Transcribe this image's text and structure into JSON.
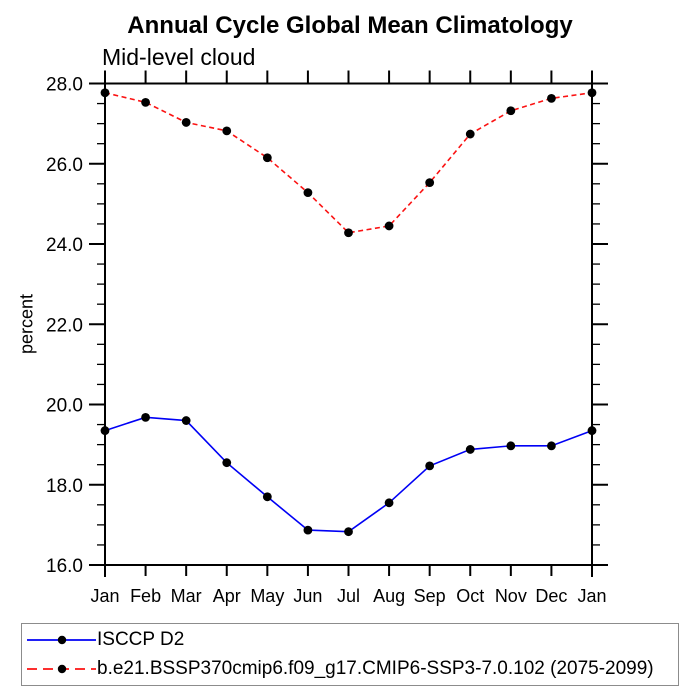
{
  "chart_data": {
    "type": "line",
    "title": "Annual Cycle Global Mean Climatology",
    "subtitle": "Mid-level cloud",
    "ylabel": "percent",
    "categories": [
      "Jan",
      "Feb",
      "Mar",
      "Apr",
      "May",
      "Jun",
      "Jul",
      "Aug",
      "Sep",
      "Oct",
      "Nov",
      "Dec",
      "Jan"
    ],
    "ylim": [
      16.0,
      28.0
    ],
    "y_major_step": 2.0,
    "y_minor_step": 0.5,
    "grid": false,
    "legend_position": "bottom-left",
    "marker_color": "#000000",
    "axis_color": "#000000",
    "series": [
      {
        "name": "ISCCP D2",
        "color": "#0000f5",
        "line_style": "solid",
        "values": [
          19.35,
          19.68,
          19.6,
          18.55,
          17.7,
          16.87,
          16.83,
          17.55,
          18.47,
          18.88,
          18.97,
          18.97,
          19.35
        ]
      },
      {
        "name": "b.e21.BSSP370cmip6.f09_g17.CMIP6-SSP3-7.0.102 (2075-2099)",
        "color": "#fb1212",
        "line_style": "dashed",
        "values": [
          27.77,
          27.53,
          27.03,
          26.82,
          26.15,
          25.28,
          24.28,
          24.45,
          25.53,
          26.74,
          27.32,
          27.63,
          27.77
        ]
      }
    ]
  }
}
